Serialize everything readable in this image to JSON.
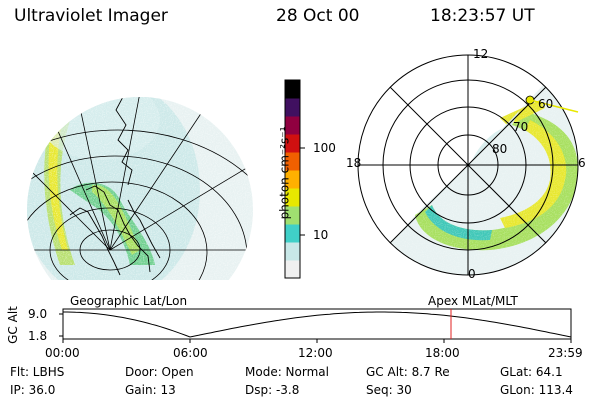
{
  "header": {
    "instrument": "Ultraviolet Imager",
    "date": "28 Oct 00",
    "time": "18:23:57 UT"
  },
  "geo_panel": {
    "label": "Geographic Lat/Lon"
  },
  "apex_panel": {
    "label": "Apex MLat/MLT",
    "mlt_labels": {
      "top": "12",
      "left": "18",
      "right": "6",
      "bottom": "0"
    },
    "lat_labels": [
      "60",
      "70",
      "80"
    ]
  },
  "colorbar": {
    "unit_label": "photon cm⁻²s⁻¹",
    "ticks": [
      "100",
      "10"
    ],
    "colors": [
      "#f0f0f0",
      "#c8e8e8",
      "#40d0c8",
      "#a0e070",
      "#e8e800",
      "#ffb000",
      "#f06000",
      "#d01010",
      "#900040",
      "#401060",
      "#000000"
    ]
  },
  "orbit_plot": {
    "ylabel": "GC Alt",
    "yticks": [
      "9.0",
      "1.8"
    ],
    "xticks": [
      "00:00",
      "06:00",
      "12:00",
      "18:00",
      "23:59"
    ],
    "current_marker_color": "#e02020"
  },
  "info": {
    "flt": "Flt: LBHS",
    "ip": "IP: 36.0",
    "door": "Door: Open",
    "gain": "Gain: 13",
    "mode": "Mode: Normal",
    "dsp": "Dsp:   -3.8",
    "gcalt": "GC Alt: 8.7 Re",
    "seq": "Seq: 30",
    "glat": "GLat:  64.1",
    "glon": "GLon: 113.4"
  }
}
